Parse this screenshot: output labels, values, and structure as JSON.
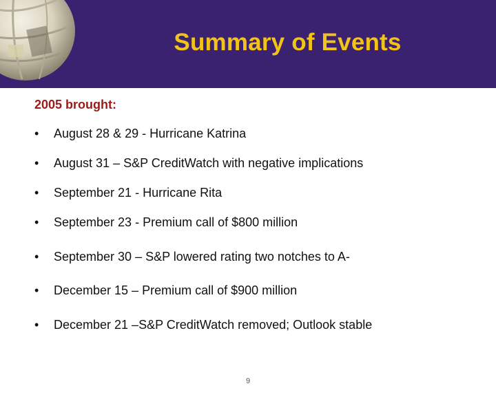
{
  "slide": {
    "title": "Summary of Events",
    "intro": "2005 brought:",
    "bullet_symbol": "•",
    "events": [
      "August 28 & 29 - Hurricane Katrina",
      "August 31 – S&P CreditWatch with negative implications",
      "September 21 - Hurricane Rita",
      "September 23 - Premium call of $800 million",
      "September 30 – S&P lowered rating two notches to A-",
      "December 15 – Premium call of $900 million",
      "December 21 –S&P CreditWatch removed; Outlook stable"
    ],
    "page_number": "9"
  },
  "colors": {
    "header_background": "#3b2270",
    "title": "#f3c318",
    "intro": "#9b1b1b"
  }
}
